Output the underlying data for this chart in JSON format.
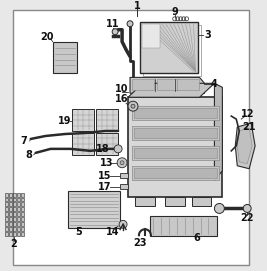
{
  "bg_color": "#e8e8e8",
  "border_color": "#888888",
  "line_color": "#2a2a2a",
  "white": "#ffffff",
  "light_gray": "#c8c8c8",
  "mid_gray": "#b0b0b0",
  "dark_gray": "#888888"
}
